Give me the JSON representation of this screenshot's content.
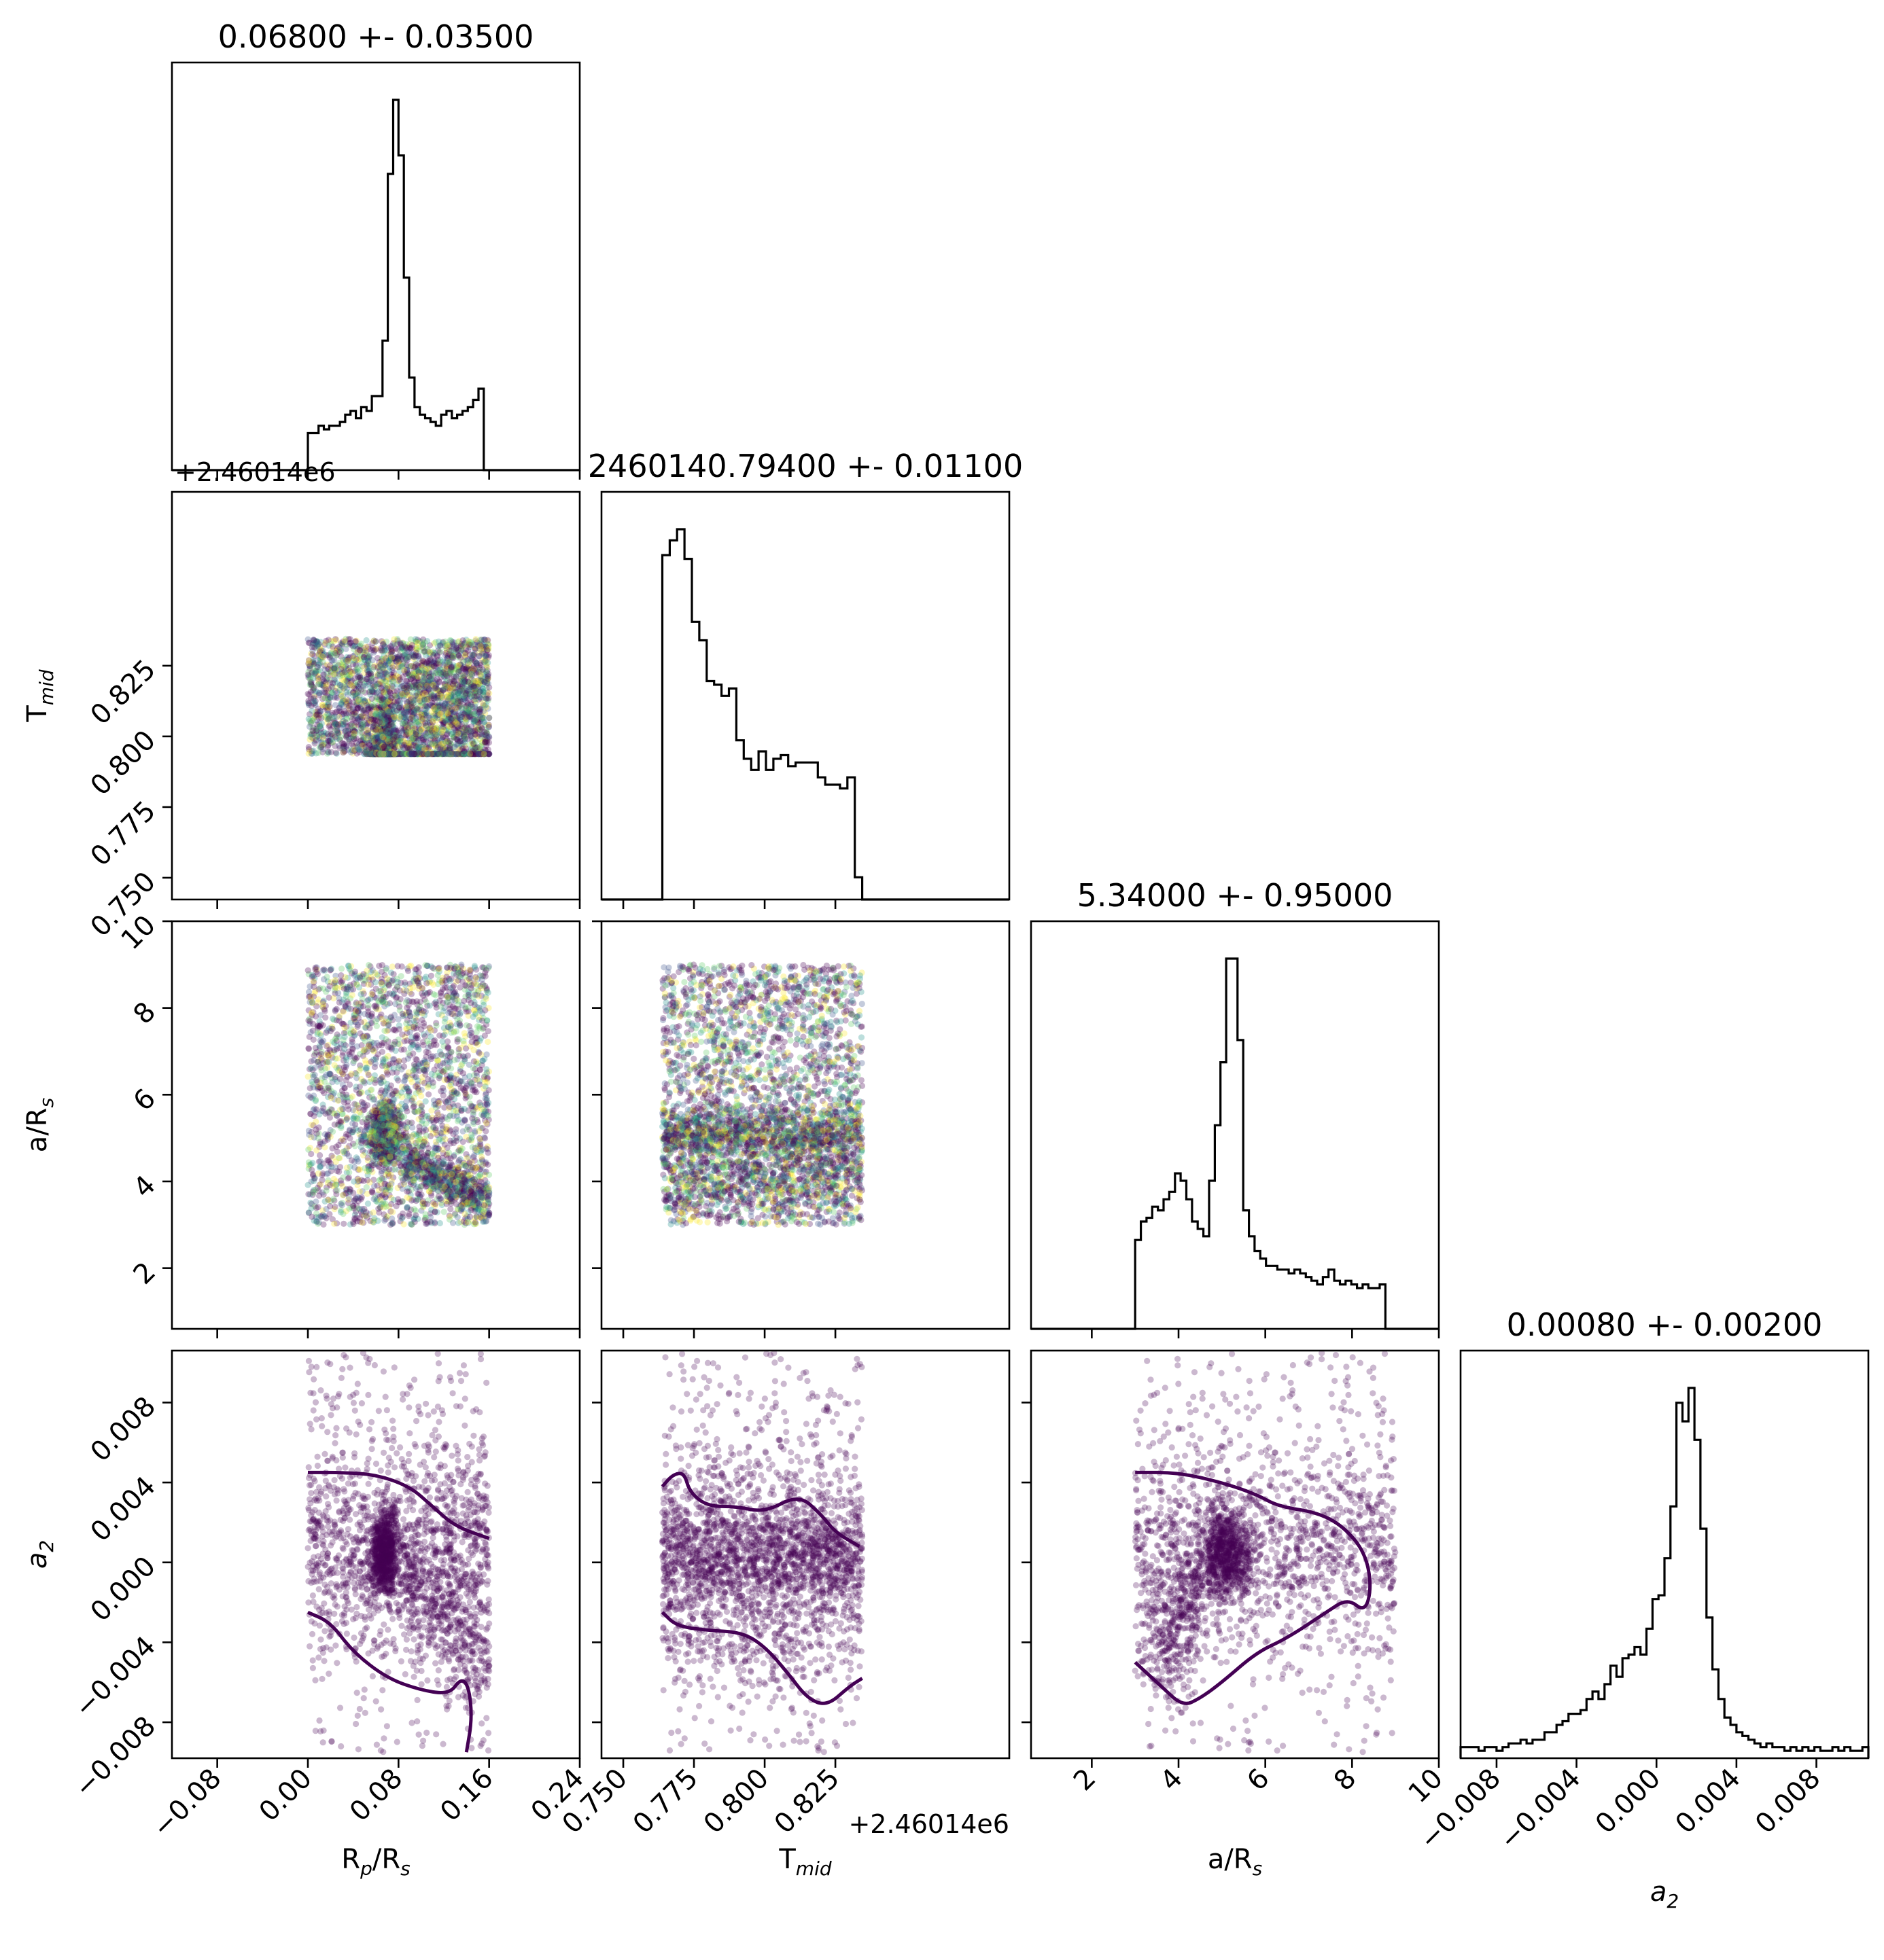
{
  "chart_data": {
    "type": "corner",
    "parameters": [
      {
        "id": "rp",
        "label": "R",
        "sub": "p",
        "label_rest": "/R",
        "sub2": "s",
        "range": [
          -0.12,
          0.24
        ],
        "ticks": [
          "−0.08",
          "0.00",
          "0.08",
          "0.16",
          "0.24"
        ],
        "tick_values": [
          -0.08,
          0.0,
          0.08,
          0.16,
          0.24
        ],
        "offset": "",
        "title": "0.06800 +- 0.03500"
      },
      {
        "id": "tmid",
        "label": "T",
        "sub": "mid",
        "label_rest": "",
        "sub2": "",
        "range": [
          0.7423,
          0.8865
        ],
        "ticks": [
          "0.750",
          "0.775",
          "0.800",
          "0.825"
        ],
        "tick_values": [
          0.75,
          0.775,
          0.8,
          0.825
        ],
        "offset": "+2.46014e6",
        "title": "2460140.79400 +- 0.01100"
      },
      {
        "id": "ars",
        "label": "a/R",
        "sub": "s",
        "label_rest": "",
        "sub2": "",
        "range": [
          0.6,
          10.0
        ],
        "ticks": [
          "2",
          "4",
          "6",
          "8",
          "10"
        ],
        "tick_values": [
          2,
          4,
          6,
          8,
          10
        ],
        "offset": "",
        "title": "5.34000 +- 0.95000"
      },
      {
        "id": "a2",
        "label": "a",
        "sub": "2",
        "label_rest": "",
        "sub2": "",
        "range": [
          -0.0098,
          0.0106
        ],
        "italic": true,
        "ticks": [
          "−0.008",
          "−0.004",
          "0.000",
          "0.004",
          "0.008"
        ],
        "tick_values": [
          -0.008,
          -0.004,
          0.0,
          0.004,
          0.008
        ],
        "offset": "",
        "title": "0.00080 +- 0.00200"
      }
    ],
    "histograms": [
      {
        "param": "rp",
        "edges": [
          0.0,
          0.16
        ],
        "peak_at": 0.068,
        "counts": [
          0.1,
          0.1,
          0.12,
          0.11,
          0.12,
          0.12,
          0.13,
          0.15,
          0.16,
          0.14,
          0.17,
          0.16,
          0.2,
          0.2,
          0.35,
          0.8,
          1.0,
          0.85,
          0.52,
          0.25,
          0.17,
          0.15,
          0.14,
          0.13,
          0.12,
          0.15,
          0.16,
          0.14,
          0.15,
          0.16,
          0.17,
          0.19,
          0.22,
          0.0
        ]
      },
      {
        "param": "tmid",
        "edges": [
          0.7638,
          0.8345
        ],
        "counts": [
          0.93,
          0.97,
          1.0,
          0.92,
          0.75,
          0.7,
          0.59,
          0.58,
          0.55,
          0.57,
          0.43,
          0.38,
          0.35,
          0.4,
          0.35,
          0.38,
          0.39,
          0.36,
          0.37,
          0.37,
          0.37,
          0.33,
          0.31,
          0.31,
          0.3,
          0.33,
          0.06
        ]
      },
      {
        "param": "ars",
        "edges": [
          3.0,
          8.9
        ],
        "counts": [
          0.24,
          0.29,
          0.3,
          0.33,
          0.32,
          0.35,
          0.37,
          0.42,
          0.4,
          0.35,
          0.29,
          0.27,
          0.25,
          0.4,
          0.55,
          0.72,
          1.0,
          1.0,
          0.78,
          0.32,
          0.25,
          0.21,
          0.19,
          0.17,
          0.17,
          0.16,
          0.16,
          0.15,
          0.16,
          0.15,
          0.14,
          0.13,
          0.12,
          0.14,
          0.16,
          0.13,
          0.12,
          0.13,
          0.12,
          0.11,
          0.12,
          0.11,
          0.11,
          0.12,
          0.0
        ]
      },
      {
        "param": "a2",
        "edges": [
          -0.0098,
          0.0106
        ],
        "counts": [
          0.03,
          0.03,
          0.03,
          0.02,
          0.03,
          0.03,
          0.02,
          0.03,
          0.04,
          0.04,
          0.05,
          0.04,
          0.05,
          0.05,
          0.07,
          0.07,
          0.09,
          0.1,
          0.12,
          0.12,
          0.13,
          0.16,
          0.18,
          0.16,
          0.2,
          0.25,
          0.22,
          0.27,
          0.28,
          0.3,
          0.28,
          0.35,
          0.43,
          0.44,
          0.54,
          0.68,
          0.96,
          0.91,
          1.0,
          0.86,
          0.62,
          0.38,
          0.24,
          0.16,
          0.11,
          0.09,
          0.07,
          0.06,
          0.05,
          0.04,
          0.03,
          0.04,
          0.03,
          0.03,
          0.02,
          0.03,
          0.02,
          0.03,
          0.02,
          0.03,
          0.02,
          0.02,
          0.03,
          0.02,
          0.03,
          0.02,
          0.02,
          0.03
        ]
      }
    ],
    "scatter_panels": [
      {
        "x": "rp",
        "y": "tmid",
        "x_range": [
          0.0,
          0.16
        ],
        "y_range": [
          0.7938,
          0.8345
        ]
      },
      {
        "x": "rp",
        "y": "ars",
        "x_range": [
          0.0,
          0.16
        ],
        "y_range": [
          3.0,
          9.0
        ]
      },
      {
        "x": "tmid",
        "y": "ars",
        "x_range": [
          0.7638,
          0.8345
        ],
        "y_range": [
          3.0,
          9.0
        ]
      },
      {
        "x": "rp",
        "y": "a2",
        "x_range": [
          0.0,
          0.16
        ],
        "y_range": [
          -0.0098,
          0.0106
        ]
      },
      {
        "x": "tmid",
        "y": "a2",
        "x_range": [
          0.7638,
          0.8345
        ],
        "y_range": [
          -0.0098,
          0.0106
        ]
      },
      {
        "x": "ars",
        "y": "a2",
        "x_range": [
          3.0,
          8.9
        ],
        "y_range": [
          -0.0098,
          0.0106
        ]
      }
    ],
    "contours": [
      {
        "x": "rp",
        "y": "a2",
        "upper": [
          [
            0.0,
            0.0045
          ],
          [
            0.03,
            0.0045
          ],
          [
            0.06,
            0.0044
          ],
          [
            0.09,
            0.0038
          ],
          [
            0.11,
            0.0028
          ],
          [
            0.13,
            0.0018
          ],
          [
            0.16,
            0.0012
          ]
        ],
        "lower": [
          [
            0.0,
            -0.0025
          ],
          [
            0.02,
            -0.003
          ],
          [
            0.04,
            -0.0045
          ],
          [
            0.07,
            -0.0058
          ],
          [
            0.1,
            -0.0064
          ],
          [
            0.125,
            -0.0066
          ],
          [
            0.135,
            -0.0058
          ],
          [
            0.142,
            -0.0062
          ],
          [
            0.145,
            -0.0078
          ],
          [
            0.14,
            -0.0095
          ]
        ]
      },
      {
        "x": "tmid",
        "y": "a2",
        "upper": [
          [
            0.7638,
            0.0038
          ],
          [
            0.7675,
            0.0044
          ],
          [
            0.7715,
            0.0045
          ],
          [
            0.7735,
            0.0035
          ],
          [
            0.78,
            0.0028
          ],
          [
            0.79,
            0.0028
          ],
          [
            0.8,
            0.0025
          ],
          [
            0.812,
            0.0034
          ],
          [
            0.82,
            0.0024
          ],
          [
            0.825,
            0.0015
          ],
          [
            0.8335,
            0.0008
          ]
        ],
        "lower": [
          [
            0.7638,
            -0.0025
          ],
          [
            0.769,
            -0.0032
          ],
          [
            0.78,
            -0.0034
          ],
          [
            0.792,
            -0.0035
          ],
          [
            0.8,
            -0.0042
          ],
          [
            0.808,
            -0.0055
          ],
          [
            0.815,
            -0.0068
          ],
          [
            0.822,
            -0.0072
          ],
          [
            0.83,
            -0.0062
          ],
          [
            0.8345,
            -0.0058
          ]
        ]
      },
      {
        "x": "ars",
        "y": "a2",
        "upper": [
          [
            3.0,
            0.0045
          ],
          [
            4.0,
            0.0045
          ],
          [
            5.0,
            0.004
          ],
          [
            5.8,
            0.0034
          ],
          [
            6.3,
            0.0028
          ],
          [
            7.2,
            0.0025
          ],
          [
            7.8,
            0.0018
          ],
          [
            8.3,
            0.0005
          ],
          [
            8.45,
            -0.0012
          ],
          [
            8.3,
            -0.0025
          ],
          [
            7.9,
            -0.0018
          ],
          [
            7.4,
            -0.0025
          ],
          [
            6.5,
            -0.0038
          ],
          [
            5.8,
            -0.0045
          ],
          [
            5.0,
            -0.006
          ],
          [
            4.5,
            -0.0068
          ],
          [
            4.1,
            -0.0072
          ],
          [
            3.6,
            -0.0062
          ],
          [
            3.0,
            -0.005
          ]
        ]
      }
    ]
  }
}
